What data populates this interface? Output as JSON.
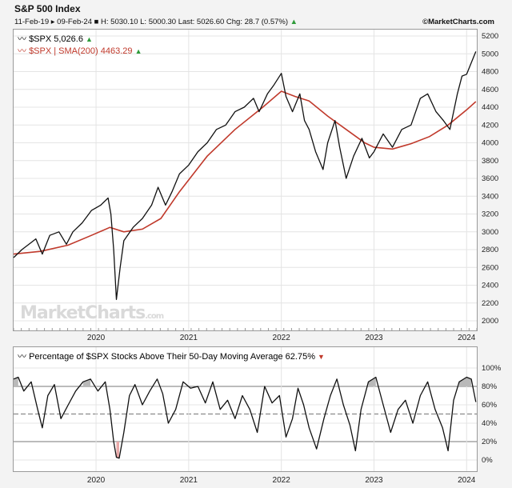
{
  "header": {
    "title": "S&P 500 Index",
    "range": "11-Feb-19 ▸ 09-Feb-24",
    "ohlc": "■ H: 5030.10 L: 5000.30 Last: 5026.60 Chg: 28.7 (0.57%)",
    "arrow": "▲",
    "brand": "©MarketCharts.com"
  },
  "colors": {
    "price": "#111111",
    "sma": "#c0392b",
    "breadth": "#111111",
    "up_arrow": "#2e9b3a",
    "down_arrow": "#c0392b",
    "high_fill": "#b9b9b9",
    "low_fill": "#e9a9a9"
  },
  "watermark": {
    "main": "MarketCharts",
    "suffix": ".com"
  },
  "chart_data": [
    {
      "type": "line",
      "title": "S&P 500 Index",
      "ylim": [
        2000,
        5200
      ],
      "y_ticks": [
        2000,
        2200,
        2400,
        2600,
        2800,
        3000,
        3200,
        3400,
        3600,
        3800,
        4000,
        4200,
        4400,
        4600,
        4800,
        5000,
        5200
      ],
      "x_ticks": [
        "2020",
        "2021",
        "2022",
        "2023",
        "2024"
      ],
      "grid": true,
      "legend_placement": "top-left",
      "legend": [
        {
          "icon": "line-icon",
          "label": "$SPX 5,026.6",
          "arrow": "▲"
        },
        {
          "icon": "line-icon",
          "label": "$SPX | SMA(200) 4463.29",
          "arrow": "▲"
        }
      ],
      "series": [
        {
          "name": "$SPX",
          "x": [
            2019.11,
            2019.2,
            2019.3,
            2019.35,
            2019.42,
            2019.5,
            2019.6,
            2019.68,
            2019.75,
            2019.85,
            2019.95,
            2020.05,
            2020.13,
            2020.16,
            2020.19,
            2020.22,
            2020.26,
            2020.3,
            2020.4,
            2020.5,
            2020.6,
            2020.67,
            2020.75,
            2020.82,
            2020.9,
            2021.0,
            2021.1,
            2021.2,
            2021.3,
            2021.4,
            2021.5,
            2021.6,
            2021.7,
            2021.76,
            2021.85,
            2021.92,
            2022.0,
            2022.05,
            2022.12,
            2022.2,
            2022.25,
            2022.3,
            2022.37,
            2022.45,
            2022.5,
            2022.58,
            2022.63,
            2022.7,
            2022.78,
            2022.87,
            2022.95,
            2023.0,
            2023.1,
            2023.2,
            2023.3,
            2023.4,
            2023.5,
            2023.58,
            2023.67,
            2023.75,
            2023.82,
            2023.9,
            2023.95,
            2024.0,
            2024.1
          ],
          "values": [
            2710,
            2800,
            2880,
            2920,
            2750,
            2960,
            3000,
            2860,
            3000,
            3100,
            3240,
            3300,
            3380,
            3200,
            2800,
            2240,
            2600,
            2900,
            3050,
            3150,
            3300,
            3500,
            3300,
            3450,
            3650,
            3750,
            3900,
            4000,
            4150,
            4200,
            4350,
            4400,
            4500,
            4350,
            4550,
            4650,
            4780,
            4520,
            4350,
            4550,
            4250,
            4150,
            3900,
            3700,
            4000,
            4250,
            3950,
            3600,
            3850,
            4050,
            3830,
            3900,
            4100,
            3950,
            4150,
            4200,
            4500,
            4550,
            4350,
            4250,
            4150,
            4550,
            4750,
            4770,
            5026
          ]
        },
        {
          "name": "$SPX | SMA(200)",
          "x": [
            2019.11,
            2019.4,
            2019.7,
            2019.95,
            2020.15,
            2020.3,
            2020.5,
            2020.7,
            2020.9,
            2021.2,
            2021.5,
            2021.8,
            2022.0,
            2022.15,
            2022.3,
            2022.5,
            2022.7,
            2022.9,
            2023.0,
            2023.2,
            2023.4,
            2023.6,
            2023.8,
            2024.0,
            2024.1
          ],
          "values": [
            2750,
            2780,
            2850,
            2960,
            3050,
            3000,
            3030,
            3150,
            3450,
            3850,
            4150,
            4400,
            4580,
            4520,
            4470,
            4300,
            4150,
            4000,
            3950,
            3930,
            3990,
            4070,
            4200,
            4370,
            4463
          ]
        }
      ]
    },
    {
      "type": "line",
      "title": "Percentage of $SPX Stocks Above Their 50-Day Moving Average 62.75%",
      "ylim": [
        -5,
        105
      ],
      "y_ticks": [
        "0%",
        "20%",
        "40%",
        "60%",
        "80%",
        "100%"
      ],
      "reference_lines": [
        80,
        50,
        20
      ],
      "x_ticks": [
        "2020",
        "2021",
        "2022",
        "2023",
        "2024"
      ],
      "grid": true,
      "legend_placement": "top-left",
      "legend": [
        {
          "icon": "line-icon",
          "label": "Percentage of $SPX Stocks Above Their 50-Day Moving Average 62.75%",
          "arrow": "▼"
        }
      ],
      "series": [
        {
          "name": "Percentage of $SPX Stocks Above Their 50-Day Moving Average",
          "x": [
            2019.11,
            2019.16,
            2019.22,
            2019.3,
            2019.37,
            2019.42,
            2019.48,
            2019.55,
            2019.62,
            2019.7,
            2019.78,
            2019.86,
            2019.94,
            2020.02,
            2020.1,
            2020.15,
            2020.19,
            2020.22,
            2020.25,
            2020.3,
            2020.36,
            2020.42,
            2020.5,
            2020.58,
            2020.66,
            2020.72,
            2020.78,
            2020.86,
            2020.94,
            2021.02,
            2021.1,
            2021.18,
            2021.26,
            2021.34,
            2021.42,
            2021.5,
            2021.58,
            2021.66,
            2021.74,
            2021.82,
            2021.9,
            2021.98,
            2022.05,
            2022.12,
            2022.18,
            2022.24,
            2022.3,
            2022.38,
            2022.46,
            2022.53,
            2022.6,
            2022.67,
            2022.74,
            2022.8,
            2022.86,
            2022.94,
            2023.02,
            2023.1,
            2023.18,
            2023.26,
            2023.34,
            2023.42,
            2023.5,
            2023.58,
            2023.66,
            2023.74,
            2023.8,
            2023.86,
            2023.92,
            2024.0,
            2024.05,
            2024.1
          ],
          "values": [
            88,
            90,
            75,
            85,
            55,
            35,
            70,
            82,
            45,
            60,
            75,
            85,
            88,
            75,
            85,
            55,
            20,
            3,
            2,
            30,
            70,
            82,
            60,
            75,
            88,
            72,
            40,
            55,
            85,
            78,
            80,
            62,
            85,
            55,
            65,
            45,
            70,
            55,
            30,
            80,
            62,
            70,
            25,
            45,
            78,
            60,
            35,
            12,
            45,
            70,
            88,
            60,
            38,
            10,
            55,
            85,
            90,
            60,
            30,
            55,
            65,
            40,
            70,
            85,
            55,
            35,
            10,
            65,
            85,
            90,
            88,
            63
          ]
        }
      ]
    }
  ]
}
